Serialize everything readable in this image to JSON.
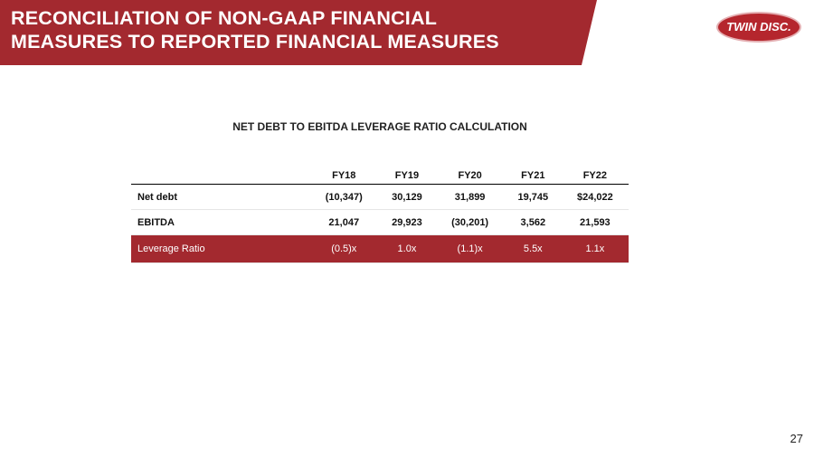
{
  "header": {
    "title_lines": [
      "RECONCILIATION OF NON-GAAP FINANCIAL",
      "MEASURES TO REPORTED FINANCIAL MEASURES"
    ],
    "logo": "TWIN DISC."
  },
  "table": {
    "title": "NET DEBT TO EBITDA LEVERAGE RATIO CALCULATION",
    "columns": [
      "FY18",
      "FY19",
      "FY20",
      "FY21",
      "FY22"
    ],
    "rows": [
      [
        "Net debt",
        "(10,347)",
        "30,129",
        "31,899",
        "19,745",
        "$24,022"
      ],
      [
        "EBITDA",
        "21,047",
        "29,923",
        "(30,201)",
        "3,562",
        "21,593"
      ],
      [
        "Leverage Ratio",
        "(0.5)x",
        "1.0x",
        "(1.1)x",
        "5.5x",
        "1.1x"
      ]
    ]
  },
  "footer": {
    "page_number": "27"
  }
}
